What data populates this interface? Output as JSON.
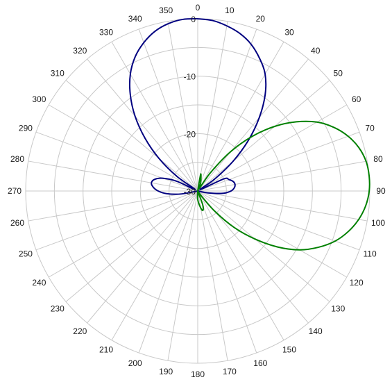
{
  "chart_data": {
    "type": "polar-line",
    "angle_unit": "degrees",
    "angle_direction": "clockwise",
    "zero_angle": "top",
    "angle_ticks": [
      0,
      10,
      20,
      30,
      40,
      50,
      60,
      70,
      80,
      90,
      100,
      110,
      120,
      130,
      140,
      150,
      160,
      170,
      180,
      190,
      200,
      210,
      220,
      230,
      240,
      250,
      260,
      270,
      280,
      290,
      300,
      310,
      320,
      330,
      340,
      350
    ],
    "radial_ticks": [
      0,
      -10,
      -20,
      -30
    ],
    "radial_range": [
      -30,
      0
    ],
    "grid": true,
    "series": [
      {
        "color": "#000080",
        "points": [
          [
            0,
            0
          ],
          [
            5,
            -0.2
          ],
          [
            10,
            -0.8
          ],
          [
            15,
            -1.6
          ],
          [
            20,
            -2.8
          ],
          [
            25,
            -4.5
          ],
          [
            30,
            -6.5
          ],
          [
            35,
            -9.5
          ],
          [
            40,
            -13.3
          ],
          [
            45,
            -17.5
          ],
          [
            50,
            -22
          ],
          [
            55,
            -26.5
          ],
          [
            60,
            -29.5
          ],
          [
            65,
            -25
          ],
          [
            70,
            -24.2
          ],
          [
            75,
            -23.6
          ],
          [
            80,
            -23.4
          ],
          [
            85,
            -23.6
          ],
          [
            90,
            -24.2
          ],
          [
            95,
            -25.5
          ],
          [
            100,
            -28
          ],
          [
            105,
            -30
          ],
          [
            255,
            -30
          ],
          [
            260,
            -27
          ],
          [
            265,
            -24.6
          ],
          [
            270,
            -23.1
          ],
          [
            275,
            -22.2
          ],
          [
            280,
            -21.8
          ],
          [
            285,
            -22.2
          ],
          [
            290,
            -23.5
          ],
          [
            295,
            -26
          ],
          [
            300,
            -29.5
          ],
          [
            305,
            -25.6
          ],
          [
            310,
            -21.2
          ],
          [
            315,
            -17
          ],
          [
            320,
            -13
          ],
          [
            325,
            -9.5
          ],
          [
            330,
            -6.5
          ],
          [
            335,
            -4.2
          ],
          [
            340,
            -2.5
          ],
          [
            345,
            -1.2
          ],
          [
            350,
            -0.4
          ],
          [
            355,
            0
          ],
          [
            360,
            0
          ]
        ]
      },
      {
        "color": "#008000",
        "points": [
          [
            0,
            -30
          ],
          [
            10,
            -27
          ],
          [
            20,
            -28.5
          ],
          [
            30,
            -29.5
          ],
          [
            35,
            -26
          ],
          [
            40,
            -21
          ],
          [
            45,
            -16.5
          ],
          [
            50,
            -12.5
          ],
          [
            55,
            -9
          ],
          [
            60,
            -6
          ],
          [
            65,
            -3.8
          ],
          [
            70,
            -2.1
          ],
          [
            75,
            -0.9
          ],
          [
            80,
            -0.2
          ],
          [
            85,
            0
          ],
          [
            90,
            -0.1
          ],
          [
            95,
            -0.6
          ],
          [
            100,
            -1.5
          ],
          [
            105,
            -2.8
          ],
          [
            110,
            -4.5
          ],
          [
            115,
            -6.8
          ],
          [
            120,
            -9.5
          ],
          [
            125,
            -13
          ],
          [
            130,
            -17
          ],
          [
            135,
            -21
          ],
          [
            140,
            -25.5
          ],
          [
            145,
            -29.2
          ],
          [
            150,
            -30
          ],
          [
            160,
            -27.5
          ],
          [
            165,
            -26.5
          ],
          [
            170,
            -27
          ],
          [
            180,
            -28.5
          ],
          [
            185,
            -30
          ]
        ]
      }
    ]
  }
}
